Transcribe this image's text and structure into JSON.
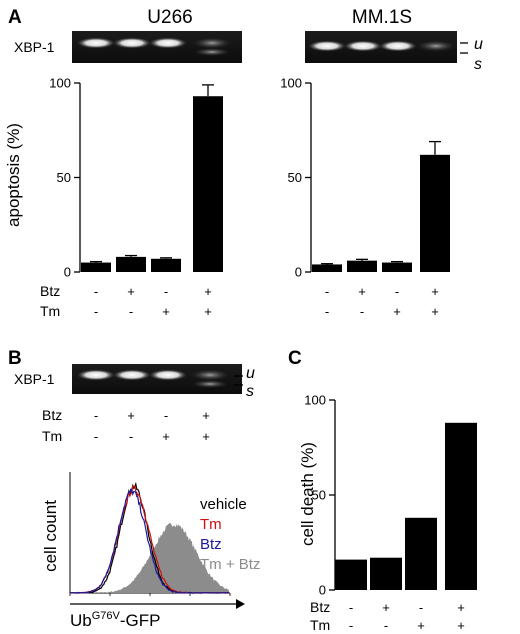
{
  "panels": {
    "a": {
      "letter": "A",
      "gel_label": "XBP-1",
      "band_unspliced": "u",
      "band_spliced": "s",
      "treatment_labels": [
        "Btz",
        "Tm"
      ],
      "btz_signs": [
        "-",
        "+",
        "-",
        "+"
      ],
      "tm_signs": [
        "-",
        "-",
        "+",
        "+"
      ]
    },
    "b": {
      "letter": "B",
      "gel_label": "XBP-1",
      "band_unspliced": "u",
      "band_spliced": "s",
      "treatment_labels": [
        "Btz",
        "Tm"
      ],
      "btz_signs": [
        "-",
        "+",
        "-",
        "+"
      ],
      "tm_signs": [
        "-",
        "-",
        "+",
        "+"
      ]
    },
    "c": {
      "letter": "C",
      "treatment_labels": [
        "Btz",
        "Tm"
      ],
      "btz_signs": [
        "-",
        "+",
        "-",
        "+"
      ],
      "tm_signs": [
        "-",
        "-",
        "+",
        "+"
      ]
    }
  },
  "chart_data": [
    {
      "type": "bar",
      "title": "U266",
      "ylabel": "apoptosis (%)",
      "ylim": [
        0,
        100
      ],
      "yticks": [
        0,
        50,
        100
      ],
      "categories": [
        "Btz- Tm-",
        "Btz+ Tm-",
        "Btz- Tm+",
        "Btz+ Tm+"
      ],
      "values": [
        5,
        8,
        7,
        93
      ],
      "errors": [
        0.5,
        0.7,
        0.5,
        6
      ],
      "color": "#000000"
    },
    {
      "type": "bar",
      "title": "MM.1S",
      "ylabel": "",
      "ylim": [
        0,
        100
      ],
      "yticks": [
        0,
        50,
        100
      ],
      "categories": [
        "Btz- Tm-",
        "Btz+ Tm-",
        "Btz- Tm+",
        "Btz+ Tm+"
      ],
      "values": [
        4,
        6,
        5,
        62
      ],
      "errors": [
        0.4,
        0.7,
        0.5,
        7
      ],
      "color": "#000000"
    },
    {
      "type": "histogram",
      "xlabel": "Ub",
      "xlabel_sup": "G76V",
      "xlabel_suffix": "-GFP",
      "ylabel": "cell count",
      "xscale": "log",
      "series": [
        {
          "name": "vehicle",
          "color": "#000000",
          "peak_log": 1.6,
          "width_log": 0.34,
          "rel_height": 0.88
        },
        {
          "name": "Tm",
          "color": "#d01010",
          "peak_log": 1.6,
          "width_log": 0.37,
          "rel_height": 0.86
        },
        {
          "name": "Btz",
          "color": "#1a1a9a",
          "peak_log": 1.55,
          "width_log": 0.35,
          "rel_height": 0.84
        },
        {
          "name": "Tm + Btz",
          "color": "#8c8c8c",
          "filled": true,
          "peak_log": 2.6,
          "width_log": 0.55,
          "rel_height": 0.57
        }
      ]
    },
    {
      "type": "bar",
      "title": "",
      "ylabel": "cell death (%)",
      "ylim": [
        0,
        100
      ],
      "yticks": [
        0,
        50,
        100
      ],
      "categories": [
        "Btz- Tm-",
        "Btz+ Tm-",
        "Btz- Tm+",
        "Btz+ Tm+"
      ],
      "values": [
        16,
        17,
        38,
        88
      ],
      "color": "#000000"
    }
  ]
}
